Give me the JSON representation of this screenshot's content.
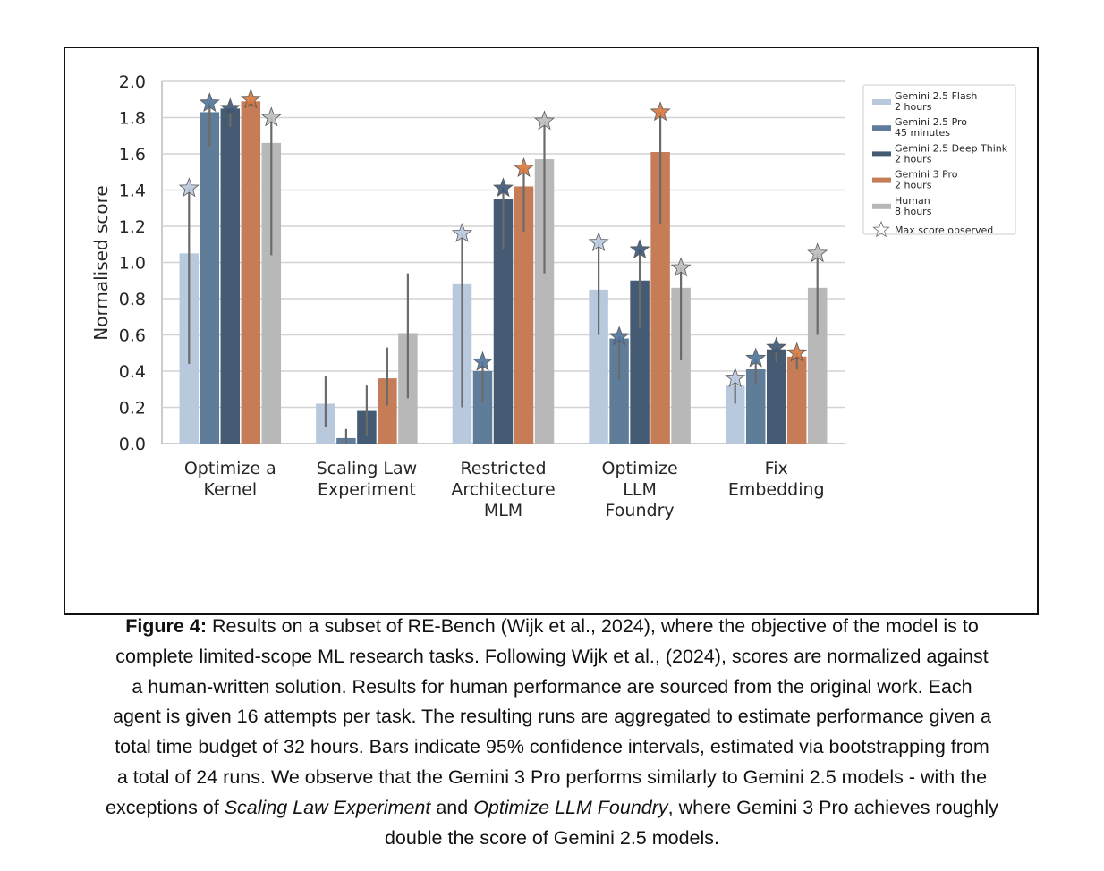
{
  "chart_data": {
    "type": "bar",
    "title": "",
    "xlabel": "",
    "ylabel": "Normalised score",
    "ylim": [
      0,
      2.0
    ],
    "yticks": [
      "0.0",
      "0.2",
      "0.4",
      "0.6",
      "0.8",
      "1.0",
      "1.2",
      "1.4",
      "1.6",
      "1.8",
      "2.0"
    ],
    "grid": true,
    "legend_position": "top-right (outside plot)",
    "categories": [
      [
        "Optimize a",
        "Kernel"
      ],
      [
        "Scaling Law",
        "Experiment"
      ],
      [
        "Restricted",
        "Architecture",
        "MLM"
      ],
      [
        "Optimize",
        "LLM",
        "Foundry"
      ],
      [
        "Fix",
        "Embedding"
      ]
    ],
    "series": [
      {
        "name": "Gemini 2.5 Flash",
        "sub": "2 hours",
        "color": "#b8c8dd",
        "star_fill": "#b8c8dd",
        "values": [
          1.05,
          0.22,
          0.88,
          0.85,
          0.32
        ],
        "ci_low": [
          0.44,
          0.09,
          0.2,
          0.6,
          0.22
        ],
        "ci_high": [
          1.41,
          0.37,
          1.16,
          1.11,
          0.36
        ],
        "max_observed": [
          1.41,
          null,
          1.16,
          1.11,
          0.36
        ]
      },
      {
        "name": "Gemini 2.5 Pro",
        "sub": "45 minutes",
        "color": "#5f7d99",
        "star_fill": "#4f739a",
        "values": [
          1.83,
          0.03,
          0.4,
          0.58,
          0.41
        ],
        "ci_low": [
          1.64,
          0.0,
          0.23,
          0.35,
          0.33
        ],
        "ci_high": [
          1.88,
          0.08,
          0.45,
          0.59,
          0.47
        ],
        "max_observed": [
          1.88,
          null,
          0.45,
          0.59,
          0.47
        ]
      },
      {
        "name": "Gemini 2.5 Deep Think",
        "sub": "2 hours",
        "color": "#445b73",
        "star_fill": "#3d5775",
        "values": [
          1.85,
          0.18,
          1.35,
          0.9,
          0.52
        ],
        "ci_low": [
          1.75,
          0.04,
          1.07,
          0.64,
          0.45
        ],
        "ci_high": [
          1.85,
          0.32,
          1.41,
          1.07,
          0.53
        ],
        "max_observed": [
          1.85,
          null,
          1.41,
          1.07,
          0.53
        ]
      },
      {
        "name": "Gemini 3 Pro",
        "sub": "2 hours",
        "color": "#c67c56",
        "star_fill": "#d6773f",
        "values": [
          1.89,
          0.36,
          1.42,
          1.61,
          0.48
        ],
        "ci_low": [
          1.86,
          0.21,
          1.17,
          1.21,
          0.41
        ],
        "ci_high": [
          1.9,
          0.53,
          1.52,
          1.83,
          0.5
        ],
        "max_observed": [
          1.9,
          null,
          1.52,
          1.83,
          0.5
        ]
      },
      {
        "name": "Human",
        "sub": "8 hours",
        "color": "#b8b8b8",
        "star_fill": "#bdbdbd",
        "values": [
          1.66,
          0.61,
          1.57,
          0.86,
          0.86
        ],
        "ci_low": [
          1.04,
          0.25,
          0.94,
          0.46,
          0.6
        ],
        "ci_high": [
          1.8,
          0.94,
          1.78,
          0.97,
          1.05
        ],
        "max_observed": [
          1.8,
          null,
          1.78,
          0.97,
          1.05
        ]
      }
    ],
    "legend_extra": "Max score observed",
    "errorbar_meaning": "95% confidence intervals"
  },
  "caption": {
    "label": "Figure 4:",
    "lines": [
      " Results on a subset of RE-Bench (Wijk et al., 2024), where the objective of the model is to",
      "complete limited-scope ML research tasks. Following Wijk et al., (2024), scores are normalized against",
      "a human-written solution. Results for human performance are sourced from the original work. Each",
      "agent is given 16 attempts per task. The resulting runs are aggregated to estimate performance given a",
      "total time budget of 32 hours. Bars indicate 95% confidence intervals, estimated via bootstrapping from",
      "a total of 24 runs. We observe that the Gemini 3 Pro performs similarly to Gemini 2.5 models - with the"
    ],
    "line7_prefix": "exceptions of ",
    "line7_italic1": "Scaling Law Experiment",
    "line7_mid": " and ",
    "line7_italic2": "Optimize LLM Foundry",
    "line7_suffix": ", where Gemini 3 Pro achieves roughly",
    "line8": "double the score of Gemini 2.5 models."
  }
}
